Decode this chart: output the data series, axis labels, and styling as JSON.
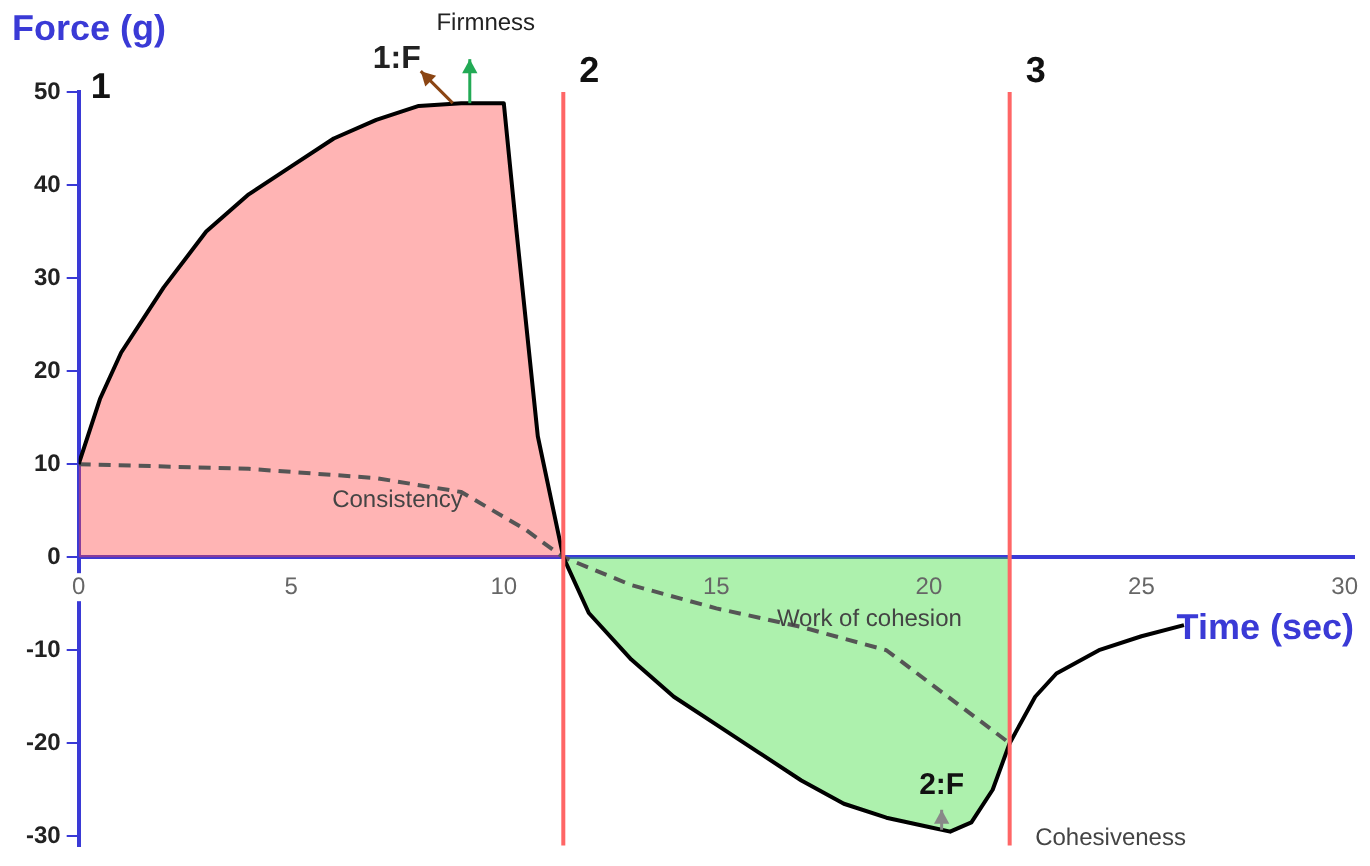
{
  "chart_data": {
    "type": "line",
    "xlabel": "Time (sec)",
    "ylabel": "Force (g)",
    "xlim": [
      0,
      30
    ],
    "xticks": [
      0,
      5,
      10,
      15,
      20,
      25,
      30
    ],
    "ylim": [
      -31,
      50
    ],
    "yticks": [
      -30,
      -20,
      -10,
      0,
      10,
      20,
      30,
      40,
      50
    ],
    "grid": false,
    "legend": false,
    "marker": "none",
    "series": [
      {
        "type": "area",
        "color": "#ff4444",
        "x": [
          0,
          0.5,
          1,
          2,
          3,
          4,
          5,
          6,
          7,
          8,
          9,
          10,
          10.3,
          10.8,
          11.4
        ],
        "values": [
          10,
          17,
          22,
          29,
          35,
          39,
          42,
          45,
          47,
          48.5,
          48.8,
          48.8,
          35,
          13,
          0
        ]
      },
      {
        "type": "area",
        "color": "#33dd33",
        "x": [
          11.4,
          12,
          13,
          14,
          15,
          16,
          17,
          18,
          19,
          20,
          20.5,
          21,
          21.5,
          21.9
        ],
        "values": [
          0,
          -6,
          -11,
          -15,
          -18,
          -21,
          -24,
          -26.5,
          -28,
          -29,
          -29.5,
          -28.5,
          -25,
          -20
        ]
      },
      {
        "type": "line",
        "color": "#000000",
        "line_style": "solid",
        "x": [
          0,
          0.5,
          1,
          2,
          3,
          4,
          5,
          6,
          7,
          8,
          9,
          10,
          10.3,
          10.8,
          11.4,
          12,
          13,
          14,
          15,
          16,
          17,
          18,
          19,
          20,
          20.5,
          21,
          21.5,
          21.9,
          22.5,
          23,
          24,
          25,
          26
        ],
        "values": [
          10,
          17,
          22,
          29,
          35,
          39,
          42,
          45,
          47,
          48.5,
          48.8,
          48.8,
          35,
          13,
          0,
          -6,
          -11,
          -15,
          -18,
          -21,
          -24,
          -26.5,
          -28,
          -29,
          -29.5,
          -28.5,
          -25,
          -20,
          -15,
          -12.5,
          -10,
          -8.5,
          -7.3
        ]
      },
      {
        "type": "line",
        "color": "#555555",
        "line_style": "dashed",
        "x": [
          0,
          4,
          7,
          9,
          10.5,
          11.4,
          13,
          15,
          17,
          19,
          21.9
        ],
        "values": [
          10,
          9.5,
          8.5,
          7,
          3,
          0,
          -3,
          -5.5,
          -7.5,
          -10,
          -20
        ]
      }
    ],
    "ref_lines": [
      {
        "axis": "x",
        "value": 11.4,
        "color": "#ff6666"
      },
      {
        "axis": "x",
        "value": 21.9,
        "color": "#ff6666"
      }
    ],
    "annotations": [
      {
        "text": "1:F",
        "x": 8.8,
        "y": 48.8
      },
      {
        "text": "Firmness",
        "x": 9.2,
        "y": 48.8
      },
      {
        "text": "Consistency",
        "x": 7.5,
        "y": 8
      },
      "Work of cohesion",
      {
        "text": "2:F",
        "x": 20.3,
        "y": -29.3
      },
      "Cohesiveness",
      "1",
      "2",
      "3"
    ]
  }
}
